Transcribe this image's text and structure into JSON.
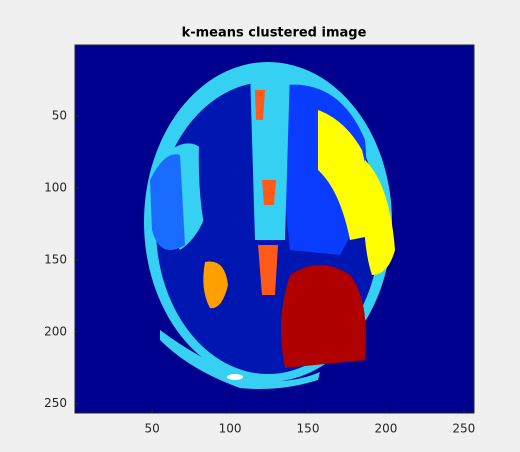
{
  "chart_data": {
    "type": "image",
    "title": "k-means clustered image",
    "xlim": [
      0.5,
      256.5
    ],
    "ylim": [
      256.5,
      0.5
    ],
    "xticks": [
      50,
      100,
      150,
      200,
      250
    ],
    "yticks": [
      50,
      100,
      150,
      200,
      250
    ]
  }
}
